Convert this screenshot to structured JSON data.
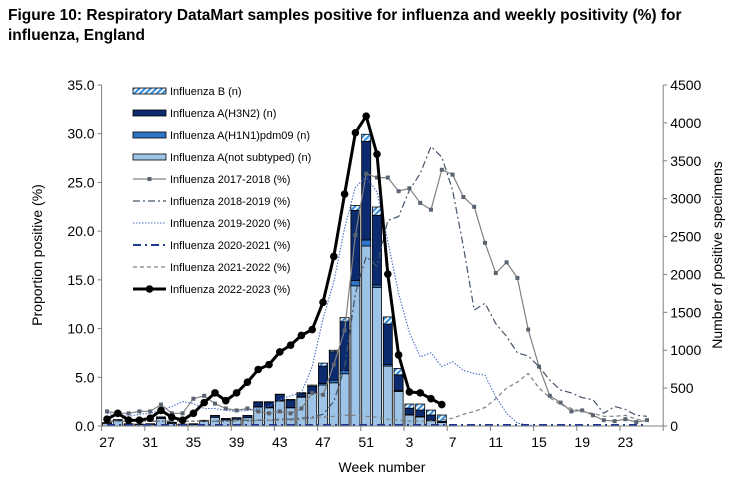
{
  "chart_data": {
    "type": "bar",
    "title": "Figure 10: Respiratory DataMart samples positive for influenza and weekly positivity (%) for influenza, England",
    "xlabel": "Week number",
    "ylabel": "Proportion positive (%)",
    "y2label": "Number of positive specimens",
    "ylim": [
      0,
      35
    ],
    "y2lim": [
      0,
      4500
    ],
    "yticks": [
      "0.0",
      "5.0",
      "10.0",
      "15.0",
      "20.0",
      "25.0",
      "30.0",
      "35.0"
    ],
    "y2ticks": [
      "0",
      "500",
      "1000",
      "1500",
      "2000",
      "2500",
      "3000",
      "3500",
      "4000",
      "4500"
    ],
    "weeks": [
      27,
      28,
      29,
      30,
      31,
      32,
      33,
      34,
      35,
      36,
      37,
      38,
      39,
      40,
      41,
      42,
      43,
      44,
      45,
      46,
      47,
      48,
      49,
      50,
      51,
      52,
      1,
      2,
      3,
      4,
      5,
      6,
      7,
      8,
      9,
      10,
      11,
      12,
      13,
      14,
      15,
      16,
      17,
      18,
      19,
      20,
      21,
      22,
      23,
      24,
      25,
      26
    ],
    "xticklabels": [
      "27",
      "31",
      "35",
      "39",
      "43",
      "47",
      "51",
      "3",
      "7",
      "11",
      "15",
      "19",
      "23"
    ],
    "legend_position": "top-left",
    "bar_series": [
      {
        "name": "Influenza A(not subtyped) (n)",
        "color": "#9dc3e6",
        "values": [
          35,
          70,
          20,
          18,
          22,
          100,
          35,
          18,
          20,
          60,
          115,
          80,
          90,
          110,
          250,
          240,
          330,
          240,
          380,
          430,
          540,
          570,
          690,
          1850,
          2375,
          1830,
          790,
          455,
          145,
          120,
          70,
          45
        ]
      },
      {
        "name": "Influenza A(H1N1)pdm09 (n)",
        "color": "#2e75c8",
        "values": [
          0,
          0,
          0,
          0,
          0,
          0,
          0,
          0,
          0,
          0,
          0,
          0,
          0,
          0,
          5,
          5,
          5,
          5,
          5,
          5,
          20,
          35,
          40,
          70,
          80,
          30,
          20,
          15,
          5,
          5,
          5,
          0
        ]
      },
      {
        "name": "Influenza A(H3N2) (n)",
        "color": "#0c2a6e",
        "values": [
          10,
          15,
          10,
          7,
          8,
          15,
          15,
          7,
          10,
          15,
          25,
          20,
          20,
          30,
          60,
          70,
          80,
          100,
          45,
          90,
          230,
          375,
          645,
          925,
          1300,
          920,
          535,
          205,
          85,
          85,
          70,
          15
        ]
      },
      {
        "name": "Influenza B (n)",
        "color": "#3a8fd8",
        "values": [
          0,
          0,
          0,
          0,
          0,
          5,
          0,
          0,
          0,
          0,
          0,
          0,
          0,
          0,
          5,
          5,
          5,
          5,
          10,
          15,
          40,
          20,
          55,
          65,
          95,
          110,
          95,
          85,
          55,
          80,
          65,
          85
        ]
      }
    ],
    "line_series": [
      {
        "name": "Influenza 2017-2018 (%)",
        "color": "#808080",
        "values": [
          1.5,
          1.3,
          1.3,
          1.5,
          1.5,
          2.2,
          1.3,
          1.3,
          2.8,
          3.1,
          2.3,
          1.8,
          1.6,
          1.8,
          1.5,
          1.3,
          1.5,
          1.3,
          1.8,
          3.4,
          3.2,
          6.3,
          9.8,
          19.6,
          25.9,
          25.5,
          25.5,
          24.1,
          24.4,
          22.9,
          22.2,
          26.3,
          25.8,
          23.5,
          22.5,
          18.8,
          15.7,
          16.8,
          15.2,
          9.9,
          6.1,
          3.1,
          2.4,
          1.5,
          1.6,
          1.1,
          0.6,
          0.5,
          0.7,
          0.4,
          0.6
        ]
      },
      {
        "name": "Influenza 2018-2019 (%)",
        "color": "#44546a",
        "values": [
          0.5,
          0.5,
          0.5,
          0.5,
          0.5,
          0.5,
          0.5,
          0.5,
          0.5,
          0.5,
          0.5,
          0.5,
          0.6,
          0.6,
          0.6,
          0.6,
          0.7,
          0.7,
          0.8,
          0.9,
          1.2,
          2.5,
          6.0,
          13.6,
          17.4,
          16.4,
          21.1,
          21.5,
          24.2,
          25.9,
          28.7,
          27.6,
          24.2,
          18.4,
          11.9,
          12.6,
          10.5,
          9.2,
          7.5,
          7.2,
          6.1,
          4.7,
          3.7,
          3.4,
          2.9,
          2.7,
          1.3,
          2.0,
          1.7,
          1.1,
          1.0
        ]
      },
      {
        "name": "Influenza 2019-2020 (%)",
        "color": "#4a6fc0",
        "values": [
          1.3,
          1.1,
          1.0,
          1.2,
          1.3,
          1.6,
          2.0,
          2.5,
          2.3,
          1.8,
          1.8,
          1.6,
          1.5,
          1.6,
          1.8,
          2.0,
          2.7,
          3.1,
          3.4,
          6.1,
          11.0,
          14.8,
          20.3,
          24.5,
          25.6,
          24.0,
          19.0,
          13.6,
          9.6,
          7.1,
          7.5,
          6.1,
          6.6,
          5.7,
          5.4,
          5.2,
          3.0,
          1.3,
          0.3,
          0.1,
          0,
          0,
          0,
          0,
          0,
          0,
          0,
          0,
          0,
          0,
          0
        ]
      },
      {
        "name": "Influenza 2020-2021 (%)",
        "color": "#1f3a93",
        "values": [
          0.1,
          0.1,
          0.1,
          0.1,
          0.1,
          0.1,
          0.1,
          0.1,
          0.1,
          0.1,
          0.1,
          0.1,
          0.1,
          0.1,
          0.1,
          0.1,
          0.1,
          0.1,
          0.1,
          0.1,
          0.1,
          0.1,
          0.1,
          0.1,
          0.1,
          0.1,
          0.1,
          0.1,
          0.1,
          0.1,
          0.1,
          0.1,
          0.1,
          0.1,
          0.1,
          0.1,
          0.1,
          0.1,
          0.1,
          0.1,
          0.1,
          0.1,
          0.1,
          0.1,
          0.1,
          0.1,
          0.1,
          0.1,
          0.1,
          0.1,
          0.1
        ]
      },
      {
        "name": "Influenza 2021-2022 (%)",
        "color": "#808080",
        "values": [
          0.5,
          0.5,
          0.5,
          0.5,
          0.5,
          0.5,
          0.5,
          0.5,
          0.5,
          0.5,
          0.5,
          0.5,
          0.5,
          0.5,
          0.6,
          0.6,
          0.6,
          0.6,
          0.7,
          0.8,
          0.9,
          1.0,
          1.1,
          1.1,
          1.0,
          0.9,
          0.7,
          0.6,
          0.5,
          0.5,
          0.5,
          0.6,
          0.8,
          1.2,
          1.5,
          1.9,
          2.8,
          3.9,
          4.5,
          5.4,
          3.9,
          2.9,
          2.2,
          1.8,
          1.5,
          1.3,
          1.0,
          1.0,
          1.1,
          0.7,
          0.5
        ]
      },
      {
        "name": "Influenza 2022-2023 (%)",
        "color": "#000000",
        "values": [
          0.7,
          1.3,
          0.6,
          0.6,
          0.8,
          1.6,
          0.9,
          0.6,
          1.3,
          2.4,
          3.4,
          2.6,
          3.4,
          4.5,
          5.8,
          6.3,
          7.6,
          8.3,
          9.3,
          9.9,
          12.7,
          17.4,
          23.8,
          30.1,
          31.8,
          27.9,
          15.6,
          7.3,
          3.5,
          3.4,
          2.8,
          2.2
        ]
      }
    ]
  }
}
